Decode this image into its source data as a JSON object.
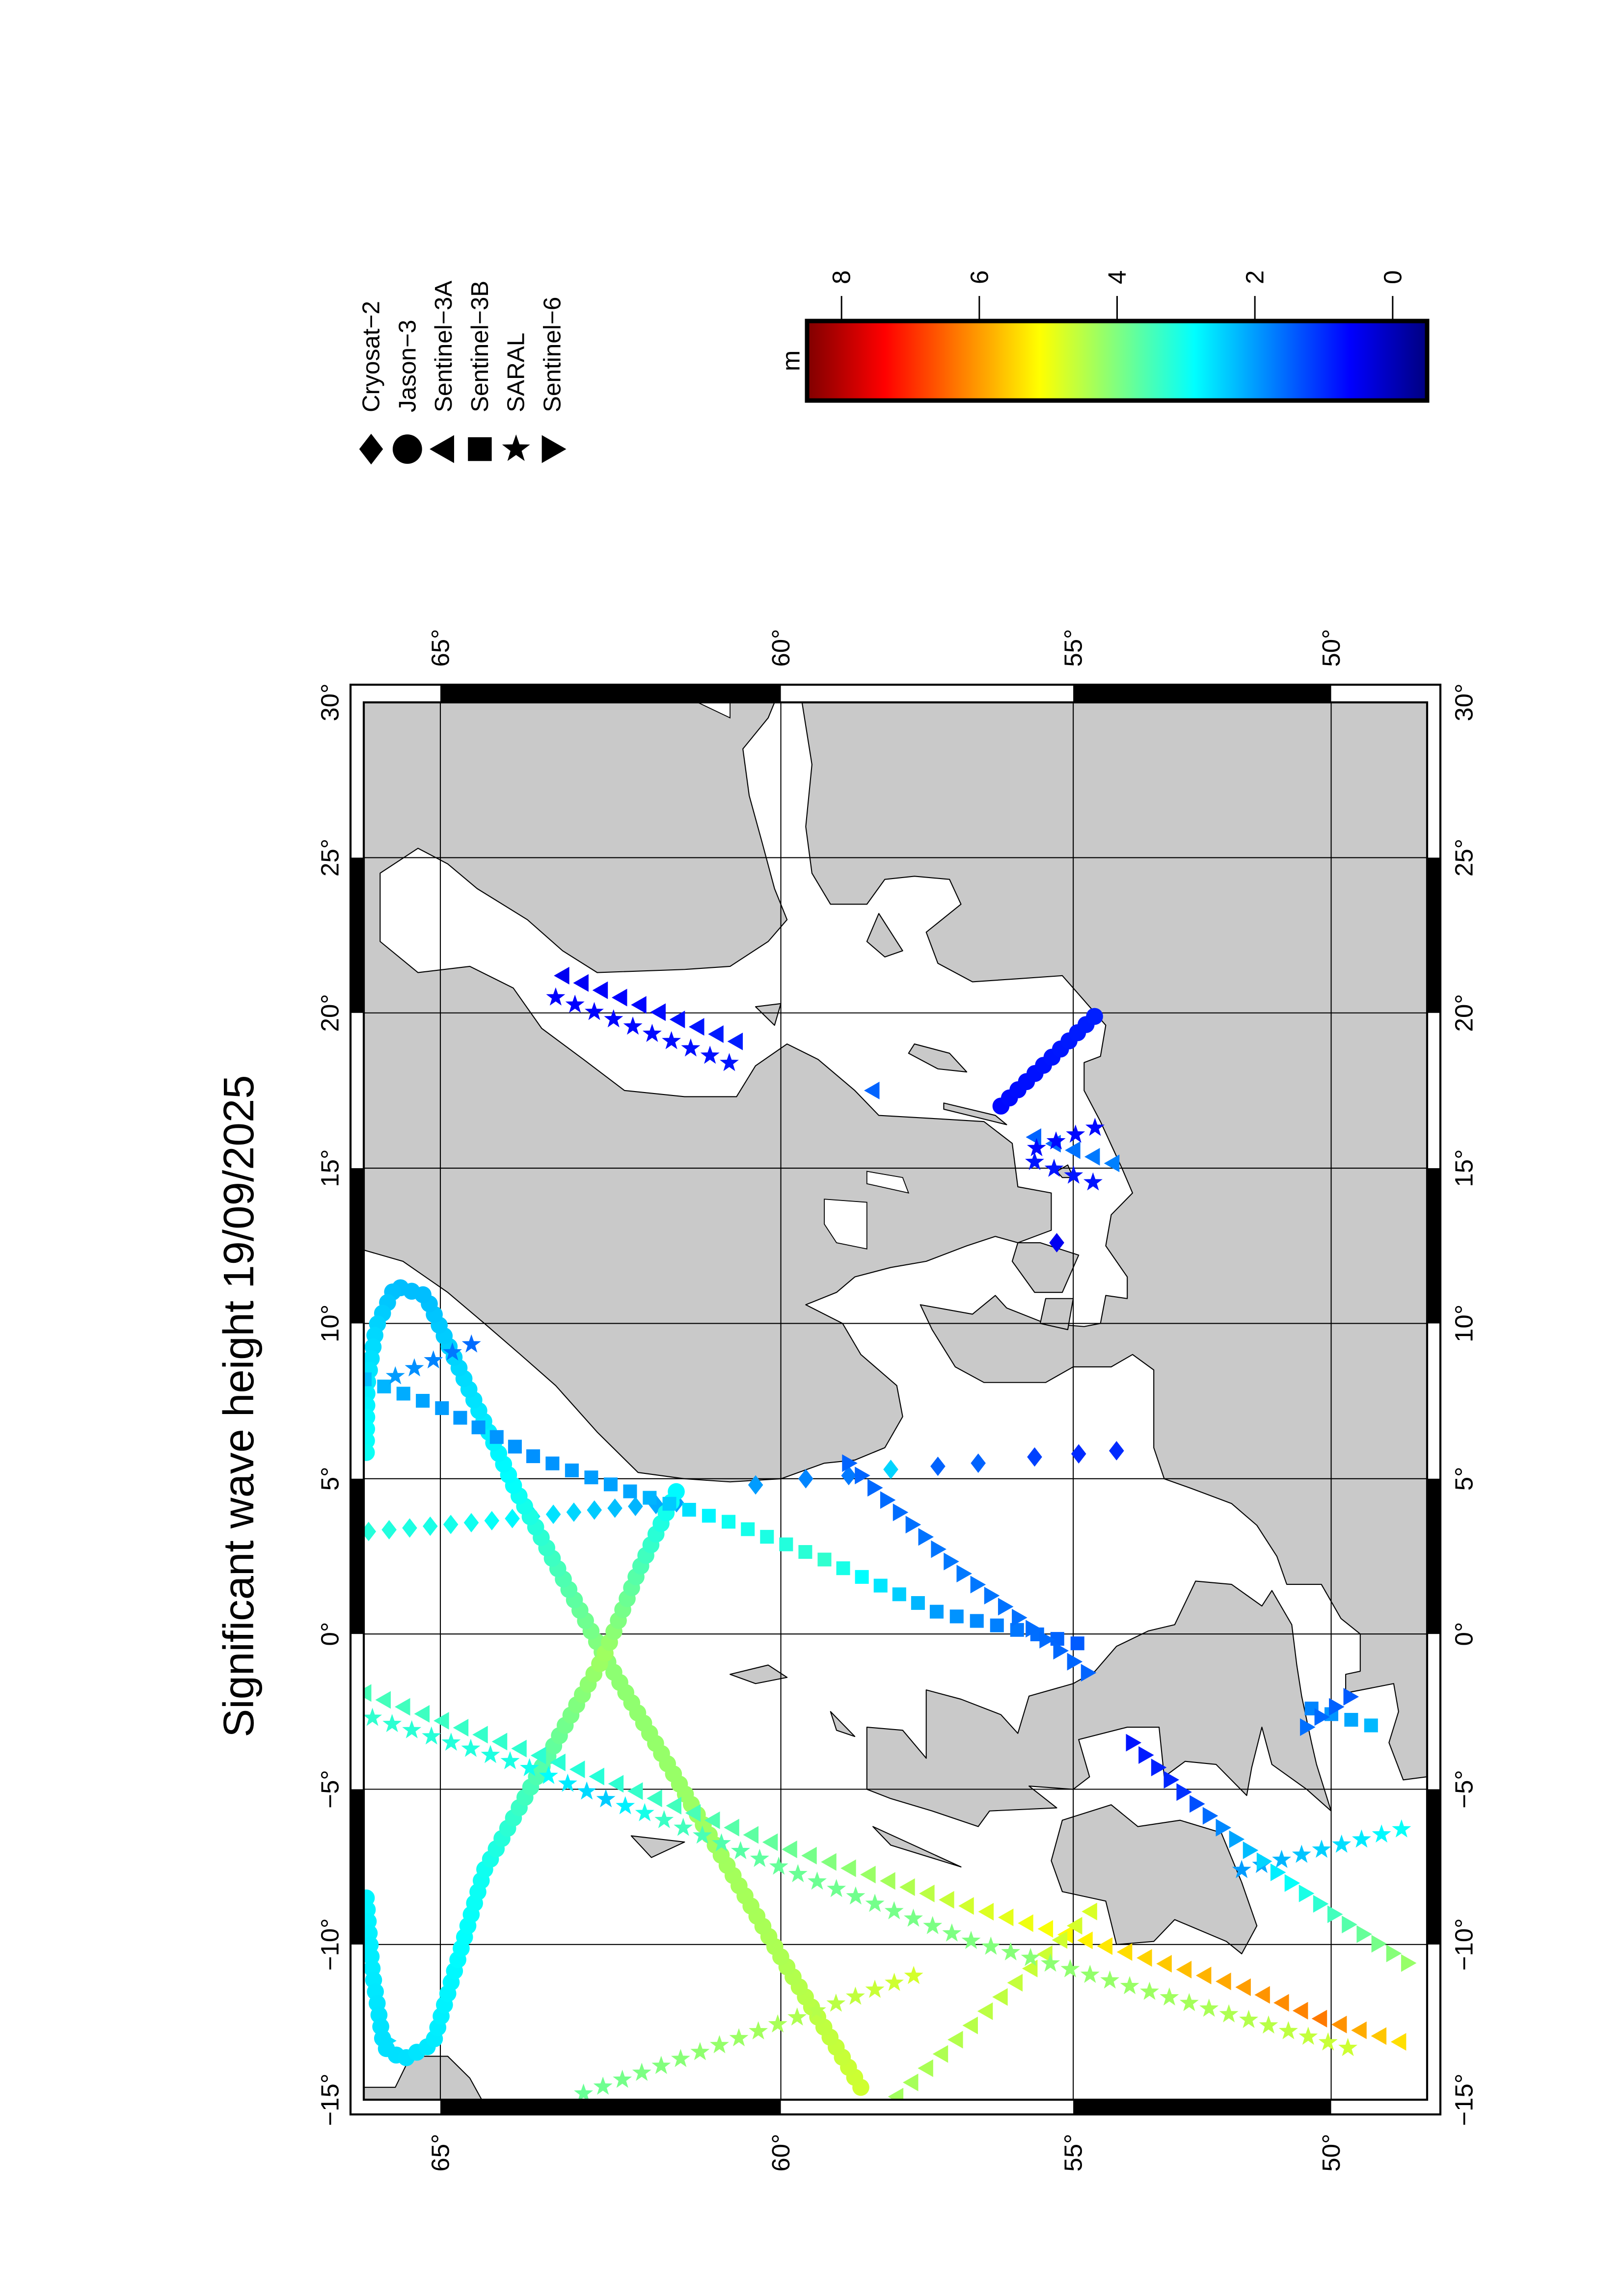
{
  "title": "Significant wave height 19/09/2025",
  "legend": {
    "items": [
      {
        "label": "Cryosat−2",
        "symbol": "diamond"
      },
      {
        "label": "Jason−3",
        "symbol": "circle"
      },
      {
        "label": "Sentinel−3A",
        "symbol": "triangle-left"
      },
      {
        "label": "Sentinel−3B",
        "symbol": "square"
      },
      {
        "label": "SARAL",
        "symbol": "star"
      },
      {
        "label": "Sentinel−6",
        "symbol": "triangle-right"
      }
    ]
  },
  "colorbar": {
    "unit_label": "m",
    "colormap": "jet",
    "range": [
      -0.5,
      8.5
    ],
    "ticks": [
      {
        "value": 8,
        "label": "8"
      },
      {
        "value": 6,
        "label": "6"
      },
      {
        "value": 4,
        "label": "4"
      },
      {
        "value": 2,
        "label": "2"
      },
      {
        "value": 0,
        "label": "0"
      }
    ]
  },
  "map": {
    "projection": "mercator",
    "lon_range": [
      -15,
      30
    ],
    "lat_range": [
      48,
      66
    ],
    "land_color": "#c9c9c9",
    "grid": true,
    "lat_ticks": [
      {
        "value": 65,
        "label": "65°"
      },
      {
        "value": 60,
        "label": "60°"
      },
      {
        "value": 55,
        "label": "55°"
      },
      {
        "value": 50,
        "label": "50°"
      }
    ],
    "lon_ticks": [
      {
        "value": 30,
        "label": "30°"
      },
      {
        "value": 25,
        "label": "25°"
      },
      {
        "value": 20,
        "label": "20°"
      },
      {
        "value": 15,
        "label": "15°"
      },
      {
        "value": 10,
        "label": "10°"
      },
      {
        "value": 5,
        "label": "5°"
      },
      {
        "value": 0,
        "label": "0°"
      },
      {
        "value": -5,
        "label": "−5°"
      },
      {
        "value": -10,
        "label": "−10°"
      },
      {
        "value": -15,
        "label": "−15°"
      }
    ]
  },
  "chart_data": {
    "type": "scatter",
    "value_name": "significant wave height",
    "value_unit": "m",
    "note_points": "each track: [lon, lat, swh_m] vertices; markers sampled along track",
    "tracks": [
      {
        "satellite": "Cryosat-2",
        "points": [
          [
            3.3,
            65.95,
            3.2
          ],
          [
            3.6,
            64.5,
            3.0
          ],
          [
            4.0,
            62.8,
            2.4
          ],
          [
            4.25,
            61.5,
            2.0
          ]
        ]
      },
      {
        "satellite": "Cryosat-2",
        "sampled": true,
        "points": [
          [
            4.8,
            60.4,
            2.0
          ],
          [
            5.0,
            59.6,
            1.8
          ],
          [
            5.1,
            58.9,
            1.7
          ],
          [
            5.3,
            58.2,
            2.5
          ],
          [
            5.4,
            57.4,
            1.5
          ],
          [
            5.5,
            56.7,
            1.5
          ],
          [
            5.7,
            55.7,
            1.2
          ],
          [
            5.8,
            54.9,
            1.0
          ],
          [
            5.9,
            54.2,
            1.0
          ]
        ]
      },
      {
        "satellite": "Cryosat-2",
        "sampled": true,
        "points": [
          [
            12.6,
            55.3,
            0.5
          ]
        ]
      },
      {
        "satellite": "Jason-3",
        "points": [
          [
            -14.6,
            58.7,
            4.7
          ],
          [
            -10.4,
            60.0,
            4.4
          ],
          [
            -0.7,
            62.7,
            4.1
          ],
          [
            4.8,
            64.0,
            2.9
          ],
          [
            10.9,
            65.2,
            2.3
          ],
          [
            11.2,
            65.6,
            2.3
          ],
          [
            9.9,
            65.85,
            2.5
          ],
          [
            8.0,
            65.97,
            2.7
          ],
          [
            5.6,
            65.98,
            3.0
          ]
        ]
      },
      {
        "satellite": "Jason-3",
        "points": [
          [
            -8.5,
            65.98,
            2.8
          ],
          [
            -10.9,
            65.9,
            2.7
          ],
          [
            -13.3,
            65.75,
            2.6
          ],
          [
            -13.7,
            65.5,
            2.6
          ],
          [
            -13.2,
            65.1,
            2.7
          ],
          [
            -7.6,
            64.4,
            3.0
          ],
          [
            -0.7,
            62.7,
            4.3
          ],
          [
            2.0,
            62.2,
            3.6
          ],
          [
            4.7,
            61.6,
            2.8
          ]
        ]
      },
      {
        "satellite": "Jason-3",
        "points": [
          [
            17.0,
            56.3,
            0.7
          ],
          [
            19.9,
            54.6,
            0.9
          ]
        ]
      },
      {
        "satellite": "Sentinel-3A",
        "points": [
          [
            -1.9,
            66.0,
            3.5
          ],
          [
            -4.5,
            62.9,
            3.2
          ],
          [
            -6.9,
            59.9,
            3.8
          ],
          [
            -8.7,
            57.0,
            4.7
          ],
          [
            -10.0,
            54.5,
            5.3
          ],
          [
            -11.4,
            51.7,
            6.0
          ],
          [
            -12.4,
            50.2,
            6.3
          ],
          [
            -13.3,
            48.2,
            5.2
          ]
        ]
      },
      {
        "satellite": "Sentinel-3A",
        "points": [
          [
            -14.9,
            58.1,
            4.3
          ],
          [
            -8.8,
            54.6,
            4.8
          ]
        ]
      },
      {
        "satellite": "Sentinel-3A",
        "points": [
          [
            21.2,
            63.3,
            0.5
          ],
          [
            19.0,
            60.6,
            0.9
          ]
        ]
      },
      {
        "satellite": "Sentinel-3A",
        "sampled": true,
        "points": [
          [
            17.5,
            58.5,
            1.5
          ]
        ]
      },
      {
        "satellite": "Sentinel-3A",
        "points": [
          [
            16.0,
            55.7,
            1.5
          ],
          [
            15.0,
            54.0,
            1.8
          ]
        ]
      },
      {
        "satellite": "Sentinel-3B",
        "points": [
          [
            8.2,
            66.0,
            2.3
          ],
          [
            7.3,
            65.0,
            2.0
          ],
          [
            5.7,
            63.7,
            1.9
          ],
          [
            4.5,
            62.2,
            2.1
          ],
          [
            3.6,
            60.8,
            3.0
          ],
          [
            2.4,
            59.3,
            3.3
          ],
          [
            0.7,
            57.4,
            2.0
          ],
          [
            -0.35,
            54.8,
            1.4
          ]
        ]
      },
      {
        "satellite": "Sentinel-3B",
        "points": [
          [
            -2.4,
            50.4,
            1.8
          ],
          [
            -3.0,
            49.05,
            2.3
          ]
        ]
      },
      {
        "satellite": "SARAL",
        "points": [
          [
            -2.7,
            65.9,
            3.3
          ],
          [
            -4.2,
            63.9,
            3.1
          ],
          [
            -5.3,
            62.7,
            2.4
          ],
          [
            -6.0,
            61.8,
            3.4
          ],
          [
            -7.6,
            59.9,
            3.8
          ],
          [
            -9.9,
            56.8,
            4.0
          ],
          [
            -11.8,
            53.0,
            4.3
          ],
          [
            -13.4,
            49.5,
            4.7
          ]
        ]
      },
      {
        "satellite": "SARAL",
        "points": [
          [
            8.3,
            65.6,
            2.0
          ],
          [
            9.5,
            64.4,
            1.5
          ]
        ]
      },
      {
        "satellite": "SARAL",
        "points": [
          [
            -14.8,
            63.0,
            3.8
          ],
          [
            -10.8,
            57.5,
            4.8
          ]
        ]
      },
      {
        "satellite": "SARAL",
        "points": [
          [
            -7.6,
            51.8,
            2.0
          ],
          [
            -6.2,
            48.3,
            3.0
          ]
        ]
      },
      {
        "satellite": "SARAL",
        "points": [
          [
            20.5,
            63.4,
            0.6
          ],
          [
            18.3,
            60.7,
            0.8
          ]
        ]
      },
      {
        "satellite": "SARAL",
        "points": [
          [
            16.3,
            54.6,
            0.7
          ],
          [
            15.5,
            55.9,
            0.7
          ]
        ]
      },
      {
        "satellite": "SARAL",
        "points": [
          [
            15.2,
            55.7,
            0.8
          ],
          [
            14.4,
            54.4,
            0.8
          ]
        ]
      },
      {
        "satellite": "Sentinel-6",
        "sampled": true,
        "points": [
          [
            -13.1,
            65.7,
            2.6
          ]
        ]
      },
      {
        "satellite": "Sentinel-6",
        "points": [
          [
            5.5,
            58.9,
            1.5
          ],
          [
            2.0,
            57.0,
            1.7
          ],
          [
            -1.3,
            54.7,
            1.5
          ]
        ]
      },
      {
        "satellite": "Sentinel-6",
        "points": [
          [
            -3.5,
            53.9,
            0.8
          ],
          [
            -5.0,
            53.0,
            1.0
          ],
          [
            -6.5,
            52.0,
            2.0
          ],
          [
            -7.8,
            51.0,
            2.8
          ],
          [
            -9.3,
            49.7,
            3.6
          ],
          [
            -10.8,
            48.2,
            4.3
          ]
        ]
      },
      {
        "satellite": "Sentinel-6",
        "points": [
          [
            -3.0,
            50.5,
            1.6
          ],
          [
            -1.9,
            49.5,
            1.4
          ]
        ]
      }
    ]
  }
}
